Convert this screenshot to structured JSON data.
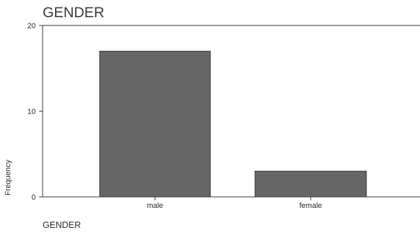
{
  "chart_data": {
    "type": "bar",
    "title": "GENDER",
    "xlabel": "GENDER",
    "ylabel": "Frequency",
    "categories": [
      "male",
      "female"
    ],
    "values": [
      17,
      3
    ],
    "ylim": [
      0,
      20
    ],
    "yticks": [
      0,
      10,
      20
    ],
    "grid": false,
    "legend": "none",
    "bar_color": "#666666",
    "bar_edge_color": "#333333"
  }
}
